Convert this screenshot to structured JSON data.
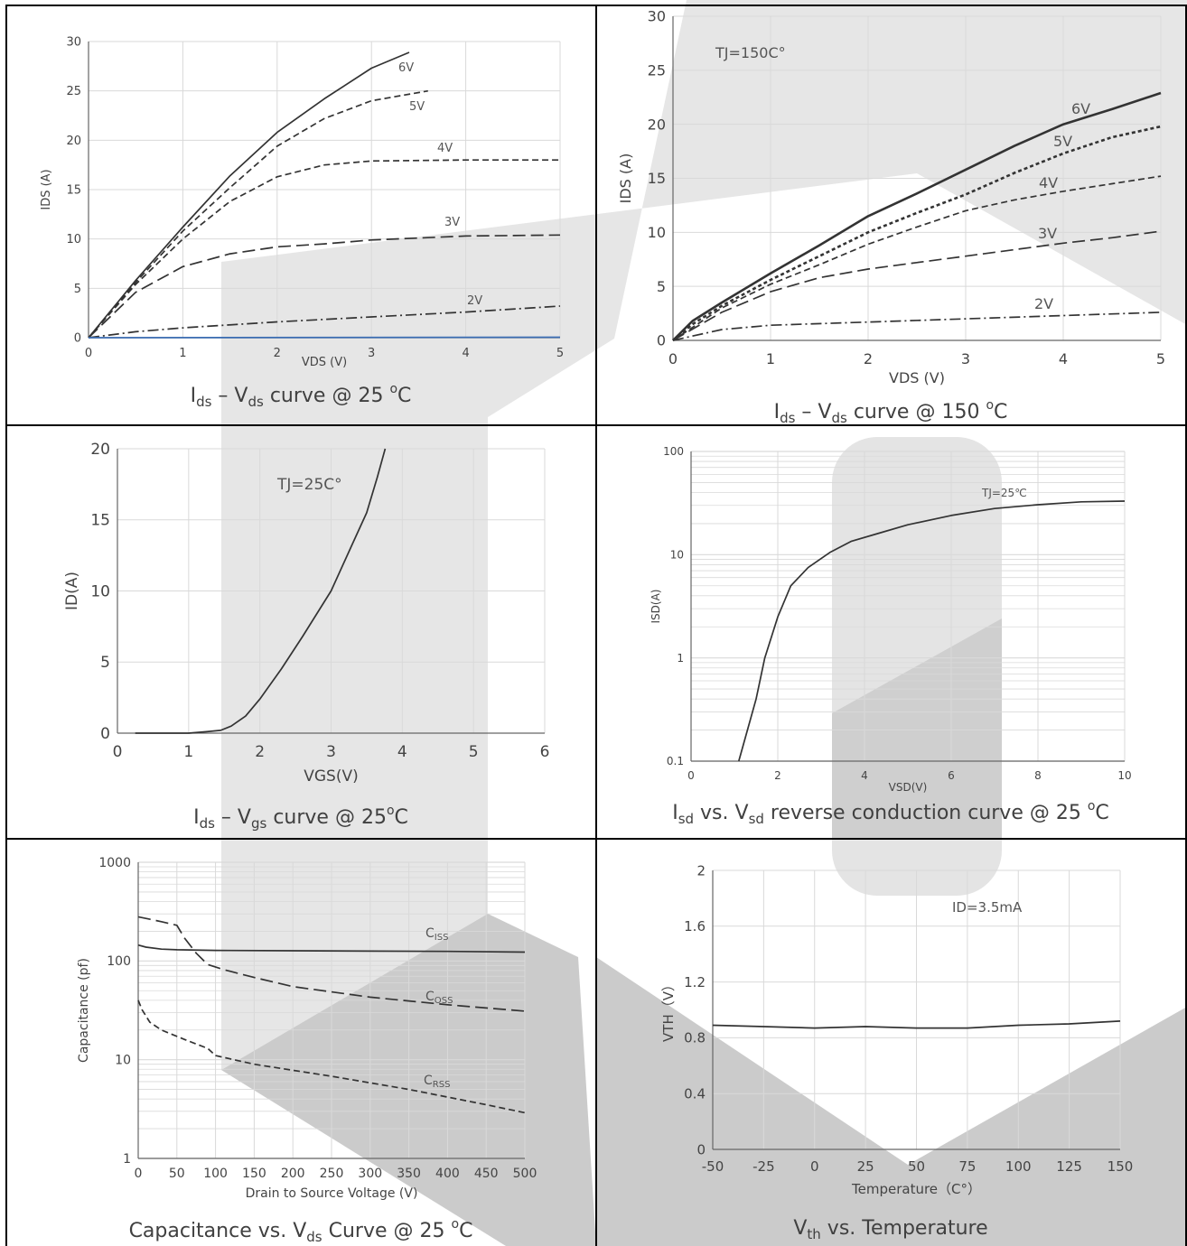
{
  "colors": {
    "curve": "#333333",
    "grid": "#d9d9d9",
    "border": "#000000",
    "watermark": "#c4c4c4",
    "blue_line": "#3c6eb4"
  },
  "charts": [
    {
      "id": "ids-vds-25",
      "caption": {
        "main": "I",
        "sub": "ds",
        "rest1": " – V",
        "sub2": "ds",
        "rest2": " curve @ 25 ",
        "sup": "o",
        "rest3": "C"
      },
      "chart_data": {
        "type": "line",
        "xlabel": "VDS (V)",
        "ylabel": "IDS (A)",
        "xlim": [
          0,
          5
        ],
        "ylim": [
          0,
          30
        ],
        "xticks": [
          "0",
          "1",
          "2",
          "3",
          "4",
          "5"
        ],
        "yticks": [
          "0",
          "5",
          "10",
          "15",
          "20",
          "25",
          "30"
        ],
        "grid": true,
        "series": [
          {
            "name": "6V",
            "style": "solid",
            "x": [
              0,
              0.5,
              1,
              1.5,
              2,
              2.5,
              3,
              3.4
            ],
            "y": [
              0,
              5.8,
              11.2,
              16.4,
              20.8,
              24.2,
              27.3,
              28.9
            ]
          },
          {
            "name": "5V",
            "style": "dash",
            "x": [
              0,
              0.5,
              1,
              1.5,
              2,
              2.5,
              3,
              3.6
            ],
            "y": [
              0,
              5.6,
              10.8,
              15.2,
              19.4,
              22.2,
              24.0,
              25.0
            ]
          },
          {
            "name": "4V",
            "style": "dash",
            "x": [
              0,
              0.5,
              1,
              1.5,
              2,
              2.5,
              3,
              4,
              5
            ],
            "y": [
              0,
              5.4,
              10.0,
              13.8,
              16.3,
              17.5,
              17.9,
              18.0,
              18.0
            ]
          },
          {
            "name": "3V",
            "style": "longdash",
            "x": [
              0,
              0.5,
              1,
              1.5,
              2,
              2.5,
              3,
              4,
              5
            ],
            "y": [
              0,
              4.6,
              7.2,
              8.5,
              9.2,
              9.5,
              9.9,
              10.3,
              10.4
            ]
          },
          {
            "name": "2V",
            "style": "dashdot",
            "x": [
              0,
              0.5,
              1,
              2,
              3,
              4,
              5
            ],
            "y": [
              0,
              0.6,
              1.0,
              1.6,
              2.1,
              2.6,
              3.2
            ]
          },
          {
            "name": "",
            "style": "blue",
            "x": [
              0,
              5
            ],
            "y": [
              0,
              0.05
            ]
          }
        ]
      }
    },
    {
      "id": "ids-vds-150",
      "caption": {
        "main": "I",
        "sub": "ds",
        "rest1": " – V",
        "sub2": "ds",
        "rest2": " curve @ 150 ",
        "sup": "o",
        "rest3": "C"
      },
      "chart_data": {
        "type": "line",
        "xlabel": "VDS (V)",
        "ylabel": "IDS (A)",
        "annotation": "TJ=150C°",
        "xlim": [
          0,
          5
        ],
        "ylim": [
          0,
          30
        ],
        "xticks": [
          "0",
          "1",
          "2",
          "3",
          "4",
          "5"
        ],
        "yticks": [
          "0",
          "5",
          "10",
          "15",
          "20",
          "25",
          "30"
        ],
        "grid": true,
        "series": [
          {
            "name": "6V",
            "style": "bold",
            "x": [
              0,
              0.2,
              0.5,
              1,
              1.5,
              2,
              2.5,
              3,
              3.5,
              4,
              4.5,
              5
            ],
            "y": [
              0,
              1.8,
              3.5,
              6.2,
              8.8,
              11.5,
              13.6,
              15.8,
              18.0,
              20.0,
              21.4,
              22.9
            ]
          },
          {
            "name": "5V",
            "style": "bolddot",
            "x": [
              0,
              0.2,
              0.5,
              1,
              1.5,
              2,
              2.5,
              3,
              3.5,
              4,
              4.5,
              5
            ],
            "y": [
              0,
              1.5,
              3.2,
              5.6,
              7.8,
              10.0,
              11.8,
              13.5,
              15.5,
              17.3,
              18.8,
              19.8
            ]
          },
          {
            "name": "4V",
            "style": "dash",
            "x": [
              0,
              0.5,
              1,
              1.5,
              2,
              2.5,
              3,
              3.5,
              4,
              4.5,
              5
            ],
            "y": [
              0,
              3.0,
              5.2,
              7.0,
              8.9,
              10.5,
              12.0,
              13.0,
              13.8,
              14.5,
              15.2
            ]
          },
          {
            "name": "3V",
            "style": "longdash",
            "x": [
              0,
              0.5,
              1,
              1.5,
              2,
              2.5,
              3,
              3.5,
              4,
              4.5,
              5
            ],
            "y": [
              0,
              2.6,
              4.5,
              5.8,
              6.6,
              7.2,
              7.8,
              8.4,
              9.0,
              9.5,
              10.1
            ]
          },
          {
            "name": "2V",
            "style": "dashdot",
            "x": [
              0,
              0.5,
              1,
              2,
              3,
              4,
              5
            ],
            "y": [
              0,
              1.0,
              1.4,
              1.7,
              2.0,
              2.3,
              2.6
            ]
          }
        ]
      }
    },
    {
      "id": "ids-vgs-25",
      "caption": {
        "main": "I",
        "sub": "ds",
        "rest1": " – V",
        "sub2": "gs",
        "rest2": " curve @ 25",
        "sup": "o",
        "rest3": "C"
      },
      "chart_data": {
        "type": "line",
        "xlabel": "VGS(V)",
        "ylabel": "ID(A)",
        "annotation": "TJ=25C°",
        "xlim": [
          0,
          6
        ],
        "ylim": [
          0,
          20
        ],
        "xticks": [
          "0",
          "1",
          "2",
          "3",
          "4",
          "5",
          "6"
        ],
        "yticks": [
          "0",
          "5",
          "10",
          "15",
          "20"
        ],
        "grid": true,
        "series": [
          {
            "name": "",
            "style": "solid",
            "x": [
              0.25,
              1.0,
              1.25,
              1.45,
              1.6,
              1.8,
              2.0,
              2.3,
              2.6,
              3.0,
              3.3,
              3.5,
              3.65,
              3.76
            ],
            "y": [
              0,
              0,
              0.1,
              0.2,
              0.5,
              1.2,
              2.4,
              4.5,
              6.8,
              10.0,
              13.3,
              15.5,
              18.0,
              20.0
            ]
          }
        ]
      }
    },
    {
      "id": "isd-vsd-25",
      "caption": {
        "main": "I",
        "sub": "sd",
        "rest1": " vs. V",
        "sub2": "sd",
        "rest2": " reverse conduction curve @ 25 ",
        "sup": "o",
        "rest3": "C"
      },
      "chart_data": {
        "type": "line",
        "xlabel": "VSD(V)",
        "ylabel": "ISD(A)",
        "annotation": "TJ=25℃",
        "xlim": [
          0,
          10
        ],
        "ylim": [
          0.1,
          100
        ],
        "yscale": "log",
        "xticks": [
          "0",
          "2",
          "4",
          "6",
          "8",
          "10"
        ],
        "yticks": [
          "0.1",
          "1",
          "10",
          "100"
        ],
        "grid": true,
        "series": [
          {
            "name": "",
            "style": "solid",
            "x": [
              1.1,
              1.3,
              1.5,
              1.7,
              2.0,
              2.3,
              2.7,
              3.2,
              3.7,
              4.3,
              5.0,
              6.0,
              7.0,
              8.0,
              9.0,
              10.0
            ],
            "y": [
              0.1,
              0.2,
              0.4,
              1.0,
              2.5,
              5.0,
              7.5,
              10.5,
              13.5,
              16.0,
              19.5,
              24.0,
              28.0,
              30.5,
              32.5,
              33.0
            ]
          }
        ]
      }
    },
    {
      "id": "cap-vds-25",
      "caption": {
        "main": "Capacitance vs. V",
        "sub": "ds",
        "rest1": " Curve @ 25 ",
        "sub2": "",
        "rest2": "",
        "sup": "o",
        "rest3": "C"
      },
      "chart_data": {
        "type": "line",
        "xlabel": "Drain to Source Voltage (V)",
        "ylabel": "Capacitance (pf)",
        "xlim": [
          0,
          500
        ],
        "ylim": [
          1,
          1000
        ],
        "yscale": "log",
        "xticks": [
          "0",
          "50",
          "100",
          "150",
          "200",
          "250",
          "300",
          "350",
          "400",
          "450",
          "500"
        ],
        "yticks": [
          "1",
          "10",
          "100",
          "1000"
        ],
        "grid": true,
        "series": [
          {
            "name": "C_ISS",
            "label": "C",
            "label_sub": "ISS",
            "style": "solid",
            "x": [
              0,
              10,
              30,
              50,
              100,
              200,
              300,
              400,
              500
            ],
            "y": [
              145,
              138,
              132,
              130,
              128,
              127,
              126,
              125,
              123
            ]
          },
          {
            "name": "C_OSS",
            "label": "C",
            "label_sub": "OSS",
            "style": "longdash",
            "x": [
              0,
              15,
              30,
              50,
              60,
              75,
              90,
              110,
              150,
              200,
              300,
              400,
              500
            ],
            "y": [
              280,
              265,
              250,
              230,
              170,
              120,
              92,
              82,
              68,
              55,
              43,
              36,
              31
            ]
          },
          {
            "name": "C_RSS",
            "label": "C",
            "label_sub": "RSS",
            "style": "dash",
            "x": [
              0,
              5,
              15,
              30,
              60,
              90,
              100,
              150,
              250,
              350,
              450,
              500
            ],
            "y": [
              40,
              32,
              24,
              20,
              16,
              13,
              11,
              9,
              6.8,
              5.0,
              3.5,
              2.9
            ]
          }
        ]
      }
    },
    {
      "id": "vth-temp",
      "caption": {
        "main": "V",
        "sub": "th",
        "rest1": " vs. Temperature",
        "sub2": "",
        "rest2": "",
        "sup": "",
        "rest3": ""
      },
      "chart_data": {
        "type": "line",
        "xlabel": "Temperature（C°）",
        "ylabel": "VTH（V）",
        "annotation": "ID=3.5mA",
        "xlim": [
          -50,
          150
        ],
        "ylim": [
          0,
          2
        ],
        "xticks": [
          "-50",
          "-25",
          "0",
          "25",
          "50",
          "75",
          "100",
          "125",
          "150"
        ],
        "yticks": [
          "0",
          "0.4",
          "0.8",
          "1.2",
          "1.6",
          "2"
        ],
        "grid": true,
        "series": [
          {
            "name": "",
            "style": "solid",
            "x": [
              -50,
              -25,
              0,
              25,
              50,
              75,
              100,
              125,
              150
            ],
            "y": [
              0.89,
              0.88,
              0.87,
              0.88,
              0.87,
              0.87,
              0.89,
              0.9,
              0.92
            ]
          }
        ]
      }
    }
  ]
}
